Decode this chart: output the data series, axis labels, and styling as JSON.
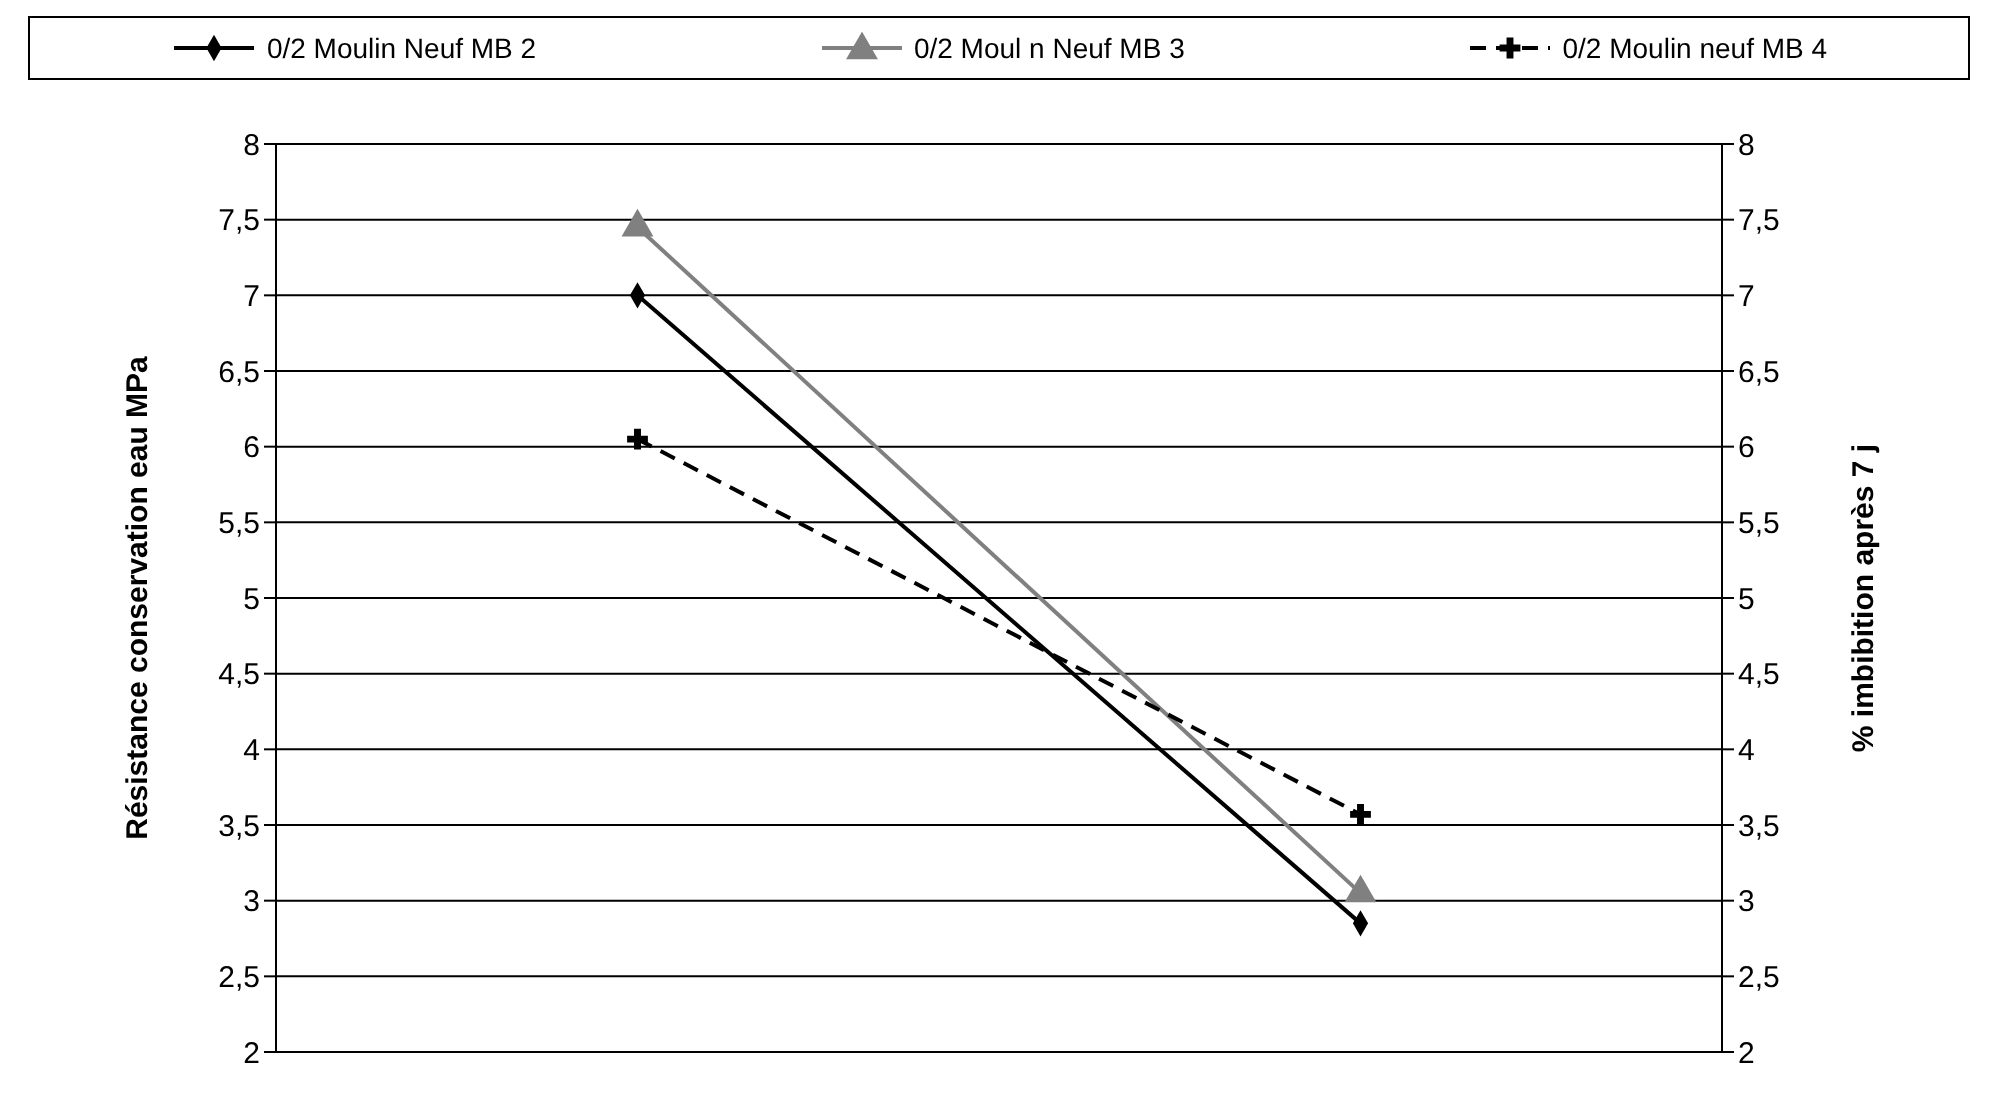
{
  "chart_data": {
    "type": "line",
    "categories": [
      null,
      null
    ],
    "series": [
      {
        "name": "0/2 Moulin Neuf MB 2",
        "color": "#000000",
        "values": [
          7.0,
          2.85
        ],
        "marker": "diamond",
        "line_style": "solid"
      },
      {
        "name": "0/2 Moul n Neuf MB 3",
        "color": "#808080",
        "values": [
          7.45,
          3.05
        ],
        "marker": "triangle",
        "line_style": "solid"
      },
      {
        "name": "0/2 Moulin neuf MB 4",
        "color": "#000000",
        "values": [
          6.05,
          3.57
        ],
        "marker": "cross",
        "line_style": "dashed"
      }
    ],
    "ylabel": "Résistance conservation  eau MPa",
    "y2label": "% imbibition après 7 j",
    "ylim": [
      2,
      8
    ],
    "yticks": [
      2,
      {
        "value": 2.5,
        "label": "2,5"
      },
      3,
      {
        "value": 3.5,
        "label": "3,5"
      },
      4,
      {
        "value": 4.5,
        "label": "4,5"
      },
      5,
      {
        "value": 5.5,
        "label": "5,5"
      },
      6,
      {
        "value": 6.5,
        "label": "6,5"
      },
      7,
      {
        "value": 7.5,
        "label": "7,5"
      },
      8
    ],
    "y2lim": [
      2,
      8
    ],
    "y2ticks": [
      2,
      {
        "value": 2.5,
        "label": "2,5"
      },
      3,
      {
        "value": 3.5,
        "label": "3,5"
      },
      4,
      {
        "value": 4.5,
        "label": "4,5"
      },
      5,
      {
        "value": 5.5,
        "label": "5,5"
      },
      6,
      {
        "value": 6.5,
        "label": "6,5"
      },
      7,
      {
        "value": 7.5,
        "label": "7,5"
      },
      8
    ],
    "grid": "y",
    "legend": "top"
  }
}
